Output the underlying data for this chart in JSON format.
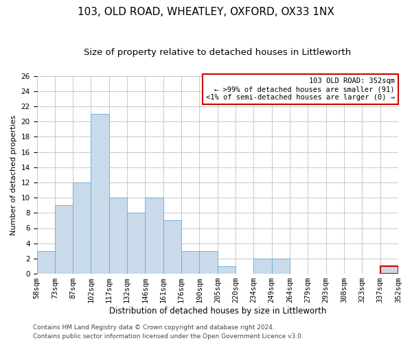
{
  "title": "103, OLD ROAD, WHEATLEY, OXFORD, OX33 1NX",
  "subtitle": "Size of property relative to detached houses in Littleworth",
  "xlabel": "Distribution of detached houses by size in Littleworth",
  "ylabel": "Number of detached properties",
  "bar_values": [
    3,
    9,
    12,
    21,
    10,
    8,
    10,
    7,
    3,
    3,
    1,
    0,
    2,
    2,
    0,
    0,
    0,
    0,
    0,
    1
  ],
  "bar_labels": [
    "58sqm",
    "73sqm",
    "87sqm",
    "102sqm",
    "117sqm",
    "132sqm",
    "146sqm",
    "161sqm",
    "176sqm",
    "190sqm",
    "205sqm",
    "220sqm",
    "234sqm",
    "249sqm",
    "264sqm",
    "279sqm",
    "293sqm",
    "308sqm",
    "323sqm",
    "337sqm",
    "352sqm"
  ],
  "bar_color": "#c9daea",
  "bar_edge_color": "#6aaad4",
  "highlight_bar_index": 19,
  "highlight_bar_color": "#c9daea",
  "highlight_bar_edge_color": "#cc0000",
  "annotation_box_text": "103 OLD ROAD: 352sqm\n← >99% of detached houses are smaller (91)\n<1% of semi-detached houses are larger (0) →",
  "annotation_box_edge_color": "#cc0000",
  "ylim": [
    0,
    26
  ],
  "yticks": [
    0,
    2,
    4,
    6,
    8,
    10,
    12,
    14,
    16,
    18,
    20,
    22,
    24,
    26
  ],
  "grid_color": "#c8c8c8",
  "background_color": "#ffffff",
  "footer_line1": "Contains HM Land Registry data © Crown copyright and database right 2024.",
  "footer_line2": "Contains public sector information licensed under the Open Government Licence v3.0.",
  "title_fontsize": 11,
  "subtitle_fontsize": 9.5,
  "xlabel_fontsize": 8.5,
  "ylabel_fontsize": 8,
  "tick_fontsize": 7.5,
  "annotation_fontsize": 7.5,
  "footer_fontsize": 6.5
}
